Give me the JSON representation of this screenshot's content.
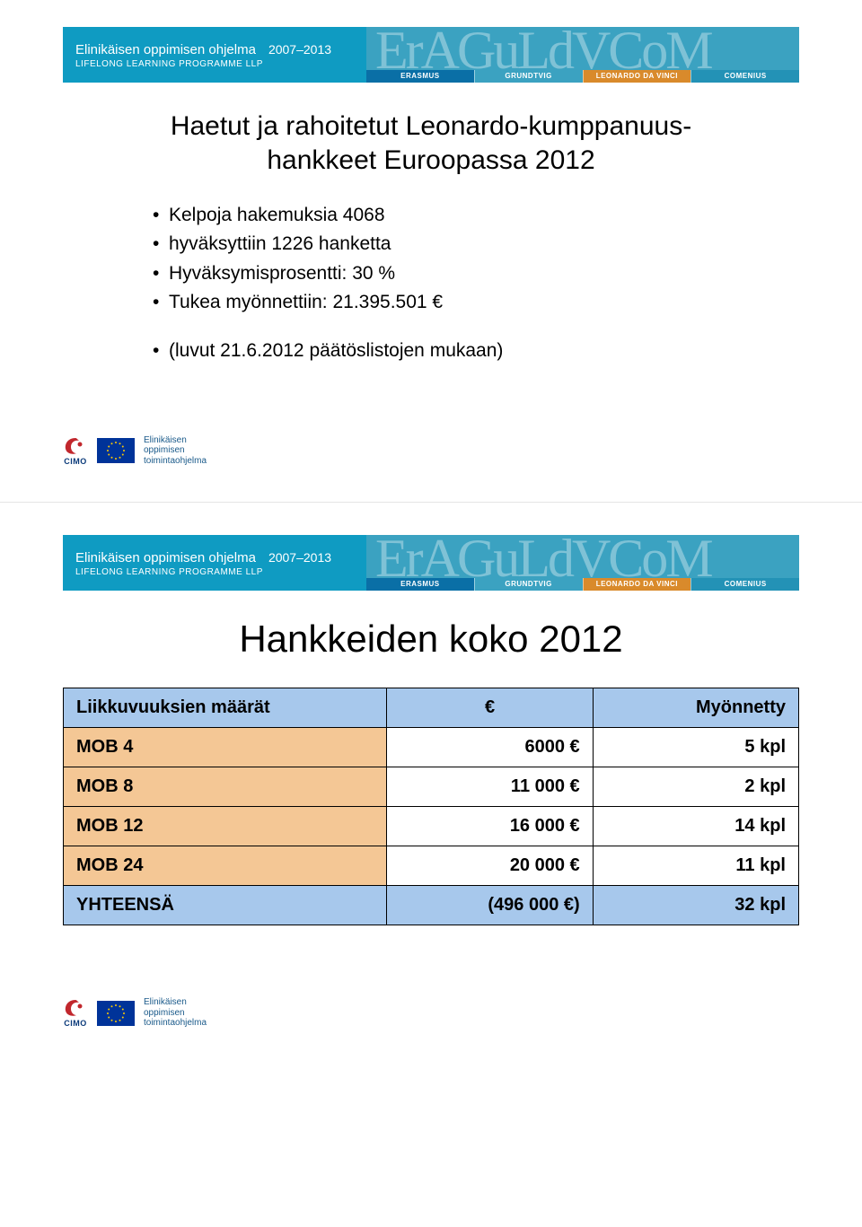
{
  "banner": {
    "program_title": "Elinikäisen oppimisen ohjelma",
    "years": "2007–2013",
    "subtitle": "LIFELONG LEARNING PROGRAMME LLP",
    "letters": "ErAGuLdVCoM",
    "tabs": [
      "ERASMUS",
      "GRUNDTVIG",
      "LEONARDO DA VINCI",
      "COMENIUS"
    ],
    "tab_colors": [
      "#0a6fa6",
      "#3ba2c1",
      "#d98a2b",
      "#2392b6"
    ],
    "left_bg": "#0f9bc2",
    "right_bg": "#3ba2c1"
  },
  "slide1": {
    "title": "Haetut ja rahoitetut Leonardo-kumppanuus-hankkeet Euroopassa 2012",
    "bullets_a": [
      "Kelpoja hakemuksia 4068",
      "hyväksyttiin 1226 hanketta",
      "Hyväksymisprosentti: 30 %",
      "Tukea myönnettiin: 21.395.501 €"
    ],
    "bullets_b": [
      "(luvut 21.6.2012 päätöslistojen mukaan)"
    ]
  },
  "footer": {
    "cimo": "CIMO",
    "program_lines": [
      "Elinikäisen",
      "oppimisen",
      "toimintaohjelma"
    ]
  },
  "slide2": {
    "title": "Hankkeiden koko 2012",
    "table": {
      "header_bg": "#a7c8ec",
      "row_bg": "#f4c795",
      "footer_bg": "#a7c8ec",
      "col_widths": [
        "44%",
        "28%",
        "28%"
      ],
      "headers": [
        "Liikkuvuuksien määrät",
        "€",
        "Myönnetty"
      ],
      "rows": [
        {
          "label": "MOB 4",
          "euro": "6000 €",
          "count": "5 kpl"
        },
        {
          "label": "MOB 8",
          "euro": "11 000 €",
          "count": "2 kpl"
        },
        {
          "label": "MOB 12",
          "euro": "16 000 €",
          "count": "14 kpl"
        },
        {
          "label": "MOB 24",
          "euro": "20 000 €",
          "count": "11 kpl"
        }
      ],
      "footer": {
        "label": "YHTEENSÄ",
        "euro": "(496 000 €)",
        "count": "32 kpl"
      }
    }
  }
}
